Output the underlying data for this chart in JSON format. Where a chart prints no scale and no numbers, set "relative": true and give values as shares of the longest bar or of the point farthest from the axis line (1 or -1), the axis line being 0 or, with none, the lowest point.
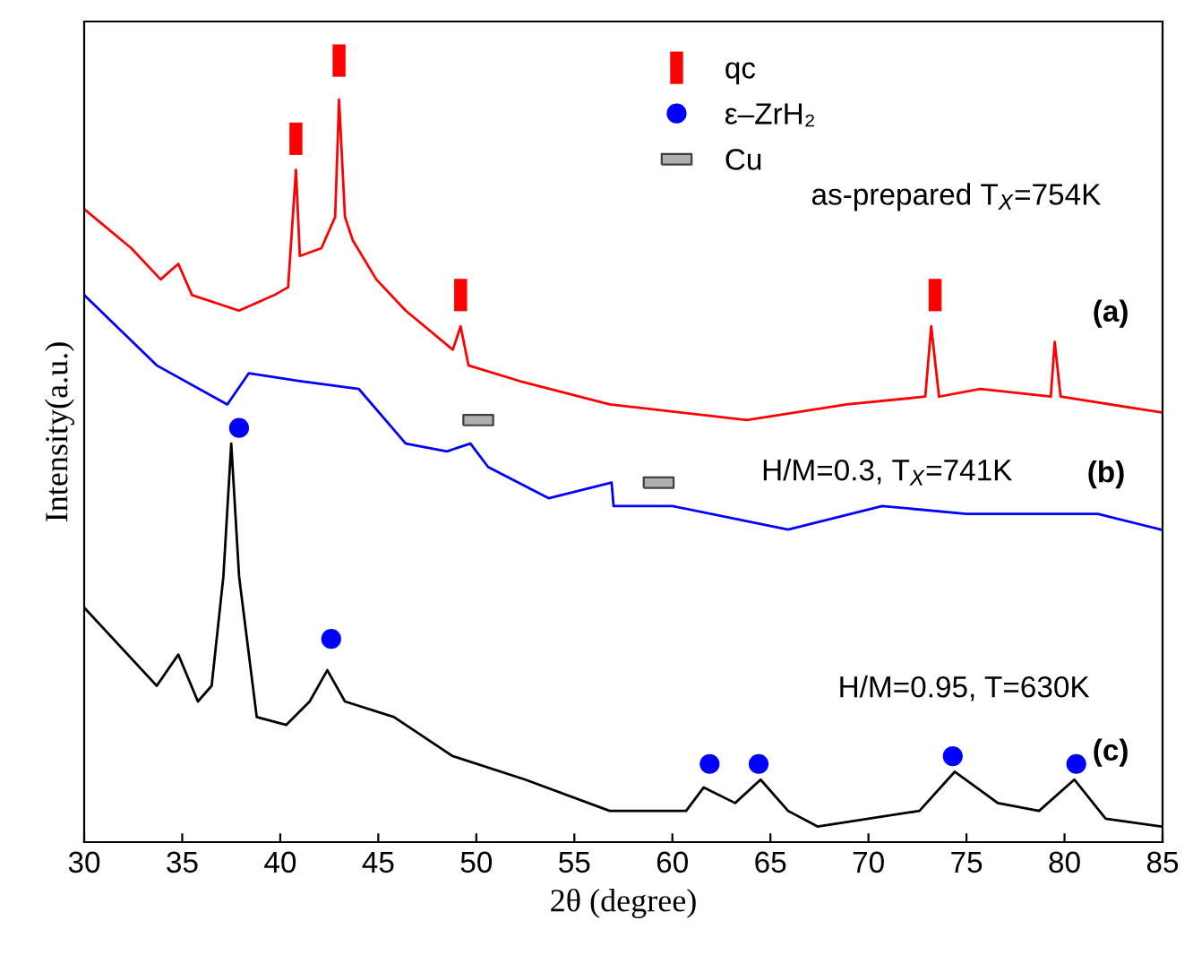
{
  "chart_data": {
    "type": "line",
    "relative": true,
    "xlabel": "2θ (degree)",
    "ylabel": "Intensity(a.u.)",
    "xlim": [
      30,
      85
    ],
    "xticks": [
      30,
      35,
      40,
      45,
      50,
      55,
      60,
      65,
      70,
      75,
      80,
      85
    ],
    "tick_labels": "x",
    "grid": false,
    "legend": "top",
    "line_style": "solid",
    "series": [
      {
        "color": "#ff0000",
        "marker": "none",
        "x": [
          30,
          32.4,
          33.9,
          34.8,
          35.5,
          37.9,
          39.7,
          40.4,
          40.8,
          41.0,
          42.1,
          42.8,
          43.0,
          43.3,
          43.7,
          44.9,
          46.4,
          48.8,
          49.2,
          49.6,
          52.2,
          56.8,
          63.8,
          68.9,
          72.9,
          73.2,
          73.6,
          75.7,
          79.3,
          79.5,
          79.8,
          84.9
        ],
        "values": [
          0.81,
          0.76,
          0.72,
          0.74,
          0.7,
          0.68,
          0.7,
          0.71,
          0.86,
          0.75,
          0.76,
          0.8,
          0.95,
          0.8,
          0.77,
          0.72,
          0.68,
          0.63,
          0.66,
          0.61,
          0.59,
          0.56,
          0.54,
          0.56,
          0.57,
          0.66,
          0.57,
          0.58,
          0.57,
          0.64,
          0.57,
          0.55
        ]
      },
      {
        "color": "#0000ff",
        "marker": "none",
        "x": [
          30,
          33.7,
          37.3,
          38.4,
          41.0,
          44.0,
          46.4,
          48.5,
          49.7,
          50.6,
          53.7,
          56.9,
          57.0,
          60.0,
          65.9,
          70.7,
          75.0,
          81.7,
          84.9
        ],
        "values": [
          0.7,
          0.61,
          0.56,
          0.6,
          0.59,
          0.58,
          0.51,
          0.5,
          0.51,
          0.48,
          0.44,
          0.46,
          0.43,
          0.43,
          0.4,
          0.43,
          0.42,
          0.42,
          0.4
        ]
      },
      {
        "color": "#000000",
        "marker": "none",
        "x": [
          30,
          33.7,
          34.8,
          35.8,
          36.5,
          37.1,
          37.5,
          37.9,
          38.8,
          40.3,
          41.5,
          42.4,
          43.3,
          45.8,
          48.8,
          52.5,
          56.8,
          60.7,
          61.6,
          63.2,
          64.5,
          65.9,
          67.4,
          72.6,
          74.4,
          76.6,
          78.7,
          80.5,
          82.1,
          84.9
        ],
        "values": [
          0.3,
          0.2,
          0.24,
          0.18,
          0.2,
          0.34,
          0.51,
          0.34,
          0.16,
          0.15,
          0.18,
          0.22,
          0.18,
          0.16,
          0.11,
          0.08,
          0.04,
          0.04,
          0.07,
          0.05,
          0.08,
          0.04,
          0.02,
          0.04,
          0.09,
          0.05,
          0.04,
          0.08,
          0.03,
          0.02
        ]
      },
      {
        "name": "qc",
        "type": "scatter",
        "color": "#ff0000",
        "marker": "square",
        "x": [
          40.8,
          43.0,
          49.2,
          73.4
        ],
        "values": [
          0.9,
          1.0,
          0.7,
          0.7
        ]
      },
      {
        "name": "ε–ZrH₂",
        "type": "scatter",
        "color": "#0000ff",
        "marker": "circle",
        "x": [
          37.9,
          42.6,
          61.9,
          64.4,
          74.3,
          80.6
        ],
        "values": [
          0.53,
          0.26,
          0.1,
          0.1,
          0.11,
          0.1
        ]
      },
      {
        "name": "Cu",
        "type": "scatter",
        "color": "#b0b0b0",
        "marker": "square",
        "x": [
          50.1,
          59.3
        ],
        "values": [
          0.54,
          0.46
        ]
      }
    ],
    "annotations": [
      "as-prepared T$_{X}$=754K",
      "(a)",
      "H/M=0.3, T$_{X}$=741K",
      "(b)",
      "H/M=0.95, T=630K",
      "(c)"
    ]
  }
}
